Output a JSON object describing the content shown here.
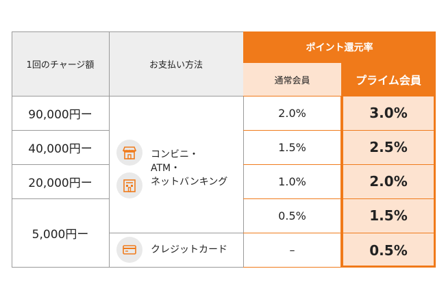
{
  "header": {
    "charge_amount": "1回のチャージ額",
    "payment_method": "お支払い方法",
    "point_rate": "ポイント還元率",
    "regular_member": "通常会員",
    "prime_member": "プライム会員"
  },
  "rows": [
    {
      "amount": "90,000円ー",
      "regular": "2.0%",
      "prime": "3.0%"
    },
    {
      "amount": "40,000円ー",
      "regular": "1.5%",
      "prime": "2.5%"
    },
    {
      "amount": "20,000円ー",
      "regular": "1.0%",
      "prime": "2.0%"
    },
    {
      "amount": "5,000円ー",
      "regular": "0.5%",
      "prime": "1.5%"
    },
    {
      "regular": "–",
      "prime": "0.5%"
    }
  ],
  "methods": {
    "convenience": [
      "コンビニ・",
      "ATM・",
      "ネットバンキング"
    ],
    "credit_card": "クレジットカード"
  },
  "icons": [
    "store-icon",
    "bank-icon",
    "credit-card-icon"
  ],
  "colors": {
    "accent": "#f07a1a",
    "accent_light": "#fde3d0",
    "header_grey": "#eeeeee"
  }
}
